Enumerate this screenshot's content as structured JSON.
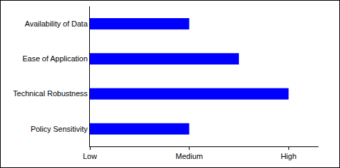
{
  "chart_data": {
    "type": "bar",
    "orientation": "horizontal",
    "categories": [
      "Availability of Data",
      "Ease of Application",
      "Technical Robustness",
      "Policy Sensitivity"
    ],
    "values": [
      1,
      1.5,
      2,
      1
    ],
    "color": "#0000ff",
    "xlim": [
      0,
      2.3
    ],
    "xticks": [
      {
        "value": 0,
        "label": "Low"
      },
      {
        "value": 1,
        "label": "Medium"
      },
      {
        "value": 2,
        "label": "High"
      }
    ],
    "grid": false
  }
}
